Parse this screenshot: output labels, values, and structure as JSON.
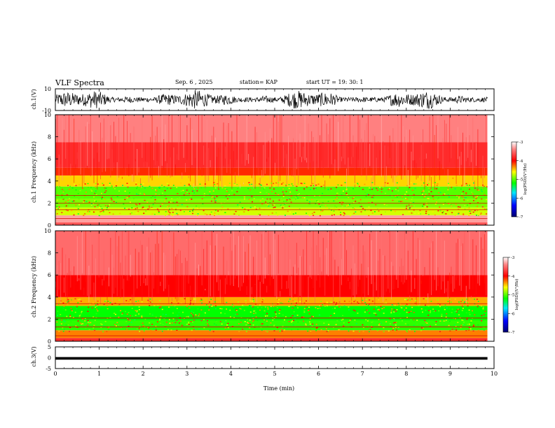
{
  "header": {
    "title": "VLF Spectra",
    "date": "Sep. 6 , 2025",
    "station": "station= KAP",
    "start_ut": "start UT = 19: 30: 1"
  },
  "chart_data": [
    {
      "id": "ch1-waveform",
      "type": "line",
      "ylabel": "ch.1(V)",
      "ylim": [
        -10,
        10
      ],
      "yticks": [
        "10",
        "-10"
      ],
      "xlim": [
        0,
        10
      ],
      "series": [
        {
          "name": "ch.1 waveform",
          "y_range_approx": [
            -9,
            9
          ]
        }
      ]
    },
    {
      "id": "ch1-spectrogram",
      "type": "heatmap",
      "ylabel": "ch.1 Frequency (kHz)",
      "ylim": [
        0,
        10
      ],
      "yticks": [
        "0",
        "2",
        "4",
        "6",
        "8",
        "10"
      ],
      "xlim": [
        0,
        9.85
      ],
      "z_colorbar": {
        "label": "log(PSD)(V²/Hz)",
        "range": [
          -7,
          -3
        ],
        "ticks": [
          "-3",
          "-4",
          "-5",
          "-6",
          "-7"
        ]
      },
      "bands_kHz": [
        {
          "f0": 0.0,
          "f1": 0.25,
          "level": -3.6
        },
        {
          "f0": 0.25,
          "f1": 0.9,
          "level": -3.3
        },
        {
          "f0": 0.9,
          "f1": 1.6,
          "level": -4.7
        },
        {
          "f0": 1.6,
          "f1": 2.4,
          "level": -4.9
        },
        {
          "f0": 2.4,
          "f1": 3.5,
          "level": -5.0
        },
        {
          "f0": 3.5,
          "f1": 4.5,
          "level": -4.5
        },
        {
          "f0": 4.5,
          "f1": 5.2,
          "level": -4.1
        },
        {
          "f0": 5.2,
          "f1": 7.5,
          "level": -3.8
        },
        {
          "f0": 7.5,
          "f1": 10.0,
          "level": -3.4
        }
      ],
      "lines_kHz": [
        0.6,
        1.4,
        2.0,
        2.7
      ]
    },
    {
      "id": "ch2-spectrogram",
      "type": "heatmap",
      "ylabel": "ch.2 Frequency (kHz)",
      "ylim": [
        0,
        10
      ],
      "yticks": [
        "0",
        "2",
        "4",
        "6",
        "8",
        "10"
      ],
      "xlim": [
        0,
        9.85
      ],
      "z_colorbar": {
        "label": "log(PSD)(V²/Hz)",
        "range": [
          -7,
          -3
        ],
        "ticks": [
          "-3",
          "-4",
          "-5",
          "-6",
          "-7"
        ]
      },
      "bands_kHz": [
        {
          "f0": 0.0,
          "f1": 0.3,
          "level": -3.8
        },
        {
          "f0": 0.3,
          "f1": 1.0,
          "level": -4.3
        },
        {
          "f0": 1.0,
          "f1": 1.9,
          "level": -5.1
        },
        {
          "f0": 1.9,
          "f1": 3.2,
          "level": -5.2
        },
        {
          "f0": 3.2,
          "f1": 4.0,
          "level": -4.4
        },
        {
          "f0": 4.0,
          "f1": 6.0,
          "level": -4.0
        },
        {
          "f0": 6.0,
          "f1": 10.0,
          "level": -3.5
        }
      ],
      "lines_kHz": [
        0.5,
        1.3,
        2.1,
        3.4
      ]
    },
    {
      "id": "ch3-waveform",
      "type": "line",
      "ylabel": "ch.3(V)",
      "ylim": [
        -5,
        5
      ],
      "yticks": [
        "5",
        "0",
        "-5"
      ],
      "xlim": [
        0,
        10
      ],
      "series": [
        {
          "name": "ch.3 waveform",
          "y_range_approx": [
            -0.6,
            0.6
          ],
          "offset": -0.3
        }
      ]
    }
  ],
  "x_axis": {
    "label": "Time (min)",
    "range": [
      0,
      10
    ],
    "ticks": [
      "0",
      "1",
      "2",
      "3",
      "4",
      "5",
      "6",
      "7",
      "8",
      "9",
      "10"
    ]
  },
  "colors": {
    "frame": "#000000",
    "waveform": "#000000",
    "colormap": [
      "#000080",
      "#0000ff",
      "#00ffff",
      "#00ff00",
      "#ffff00",
      "#ff0000",
      "#ffffff"
    ]
  }
}
